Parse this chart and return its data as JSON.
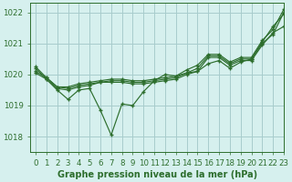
{
  "title": "Graphe pression niveau de la mer (hPa)",
  "background_color": "#d6f0ee",
  "grid_color": "#a8cccc",
  "line_color": "#2d6e2d",
  "marker_color": "#2d6e2d",
  "xlim": [
    -0.5,
    23
  ],
  "ylim": [
    1017.5,
    1022.3
  ],
  "yticks": [
    1018,
    1019,
    1020,
    1021,
    1022
  ],
  "xticks": [
    0,
    1,
    2,
    3,
    4,
    5,
    6,
    7,
    8,
    9,
    10,
    11,
    12,
    13,
    14,
    15,
    16,
    17,
    18,
    19,
    20,
    21,
    22,
    23
  ],
  "line1": [
    1020.2,
    1019.85,
    1019.5,
    1019.2,
    1019.5,
    1019.55,
    1018.85,
    1018.05,
    1019.05,
    1019.0,
    1019.45,
    1019.8,
    1020.0,
    1019.95,
    1020.05,
    1020.1,
    1020.35,
    1020.45,
    1020.2,
    1020.4,
    1020.5,
    1021.05,
    1021.55,
    1021.95
  ],
  "line2": [
    1020.05,
    1019.85,
    1019.55,
    1019.5,
    1019.6,
    1019.65,
    1019.75,
    1019.75,
    1019.75,
    1019.7,
    1019.7,
    1019.75,
    1019.8,
    1019.85,
    1020.0,
    1020.1,
    1020.55,
    1020.55,
    1020.3,
    1020.45,
    1020.45,
    1020.95,
    1021.35,
    1021.55
  ],
  "line3": [
    1020.1,
    1019.9,
    1019.6,
    1019.55,
    1019.65,
    1019.7,
    1019.75,
    1019.8,
    1019.8,
    1019.75,
    1019.75,
    1019.8,
    1019.85,
    1019.9,
    1020.05,
    1020.2,
    1020.6,
    1020.6,
    1020.35,
    1020.5,
    1020.5,
    1021.0,
    1021.3,
    1022.0
  ],
  "line4": [
    1020.25,
    1019.9,
    1019.6,
    1019.6,
    1019.7,
    1019.75,
    1019.8,
    1019.85,
    1019.85,
    1019.8,
    1019.8,
    1019.85,
    1019.9,
    1019.95,
    1020.15,
    1020.3,
    1020.65,
    1020.65,
    1020.4,
    1020.55,
    1020.55,
    1021.1,
    1021.45,
    1022.1
  ],
  "xlabel_fontsize": 7.0,
  "tick_fontsize": 6.2
}
